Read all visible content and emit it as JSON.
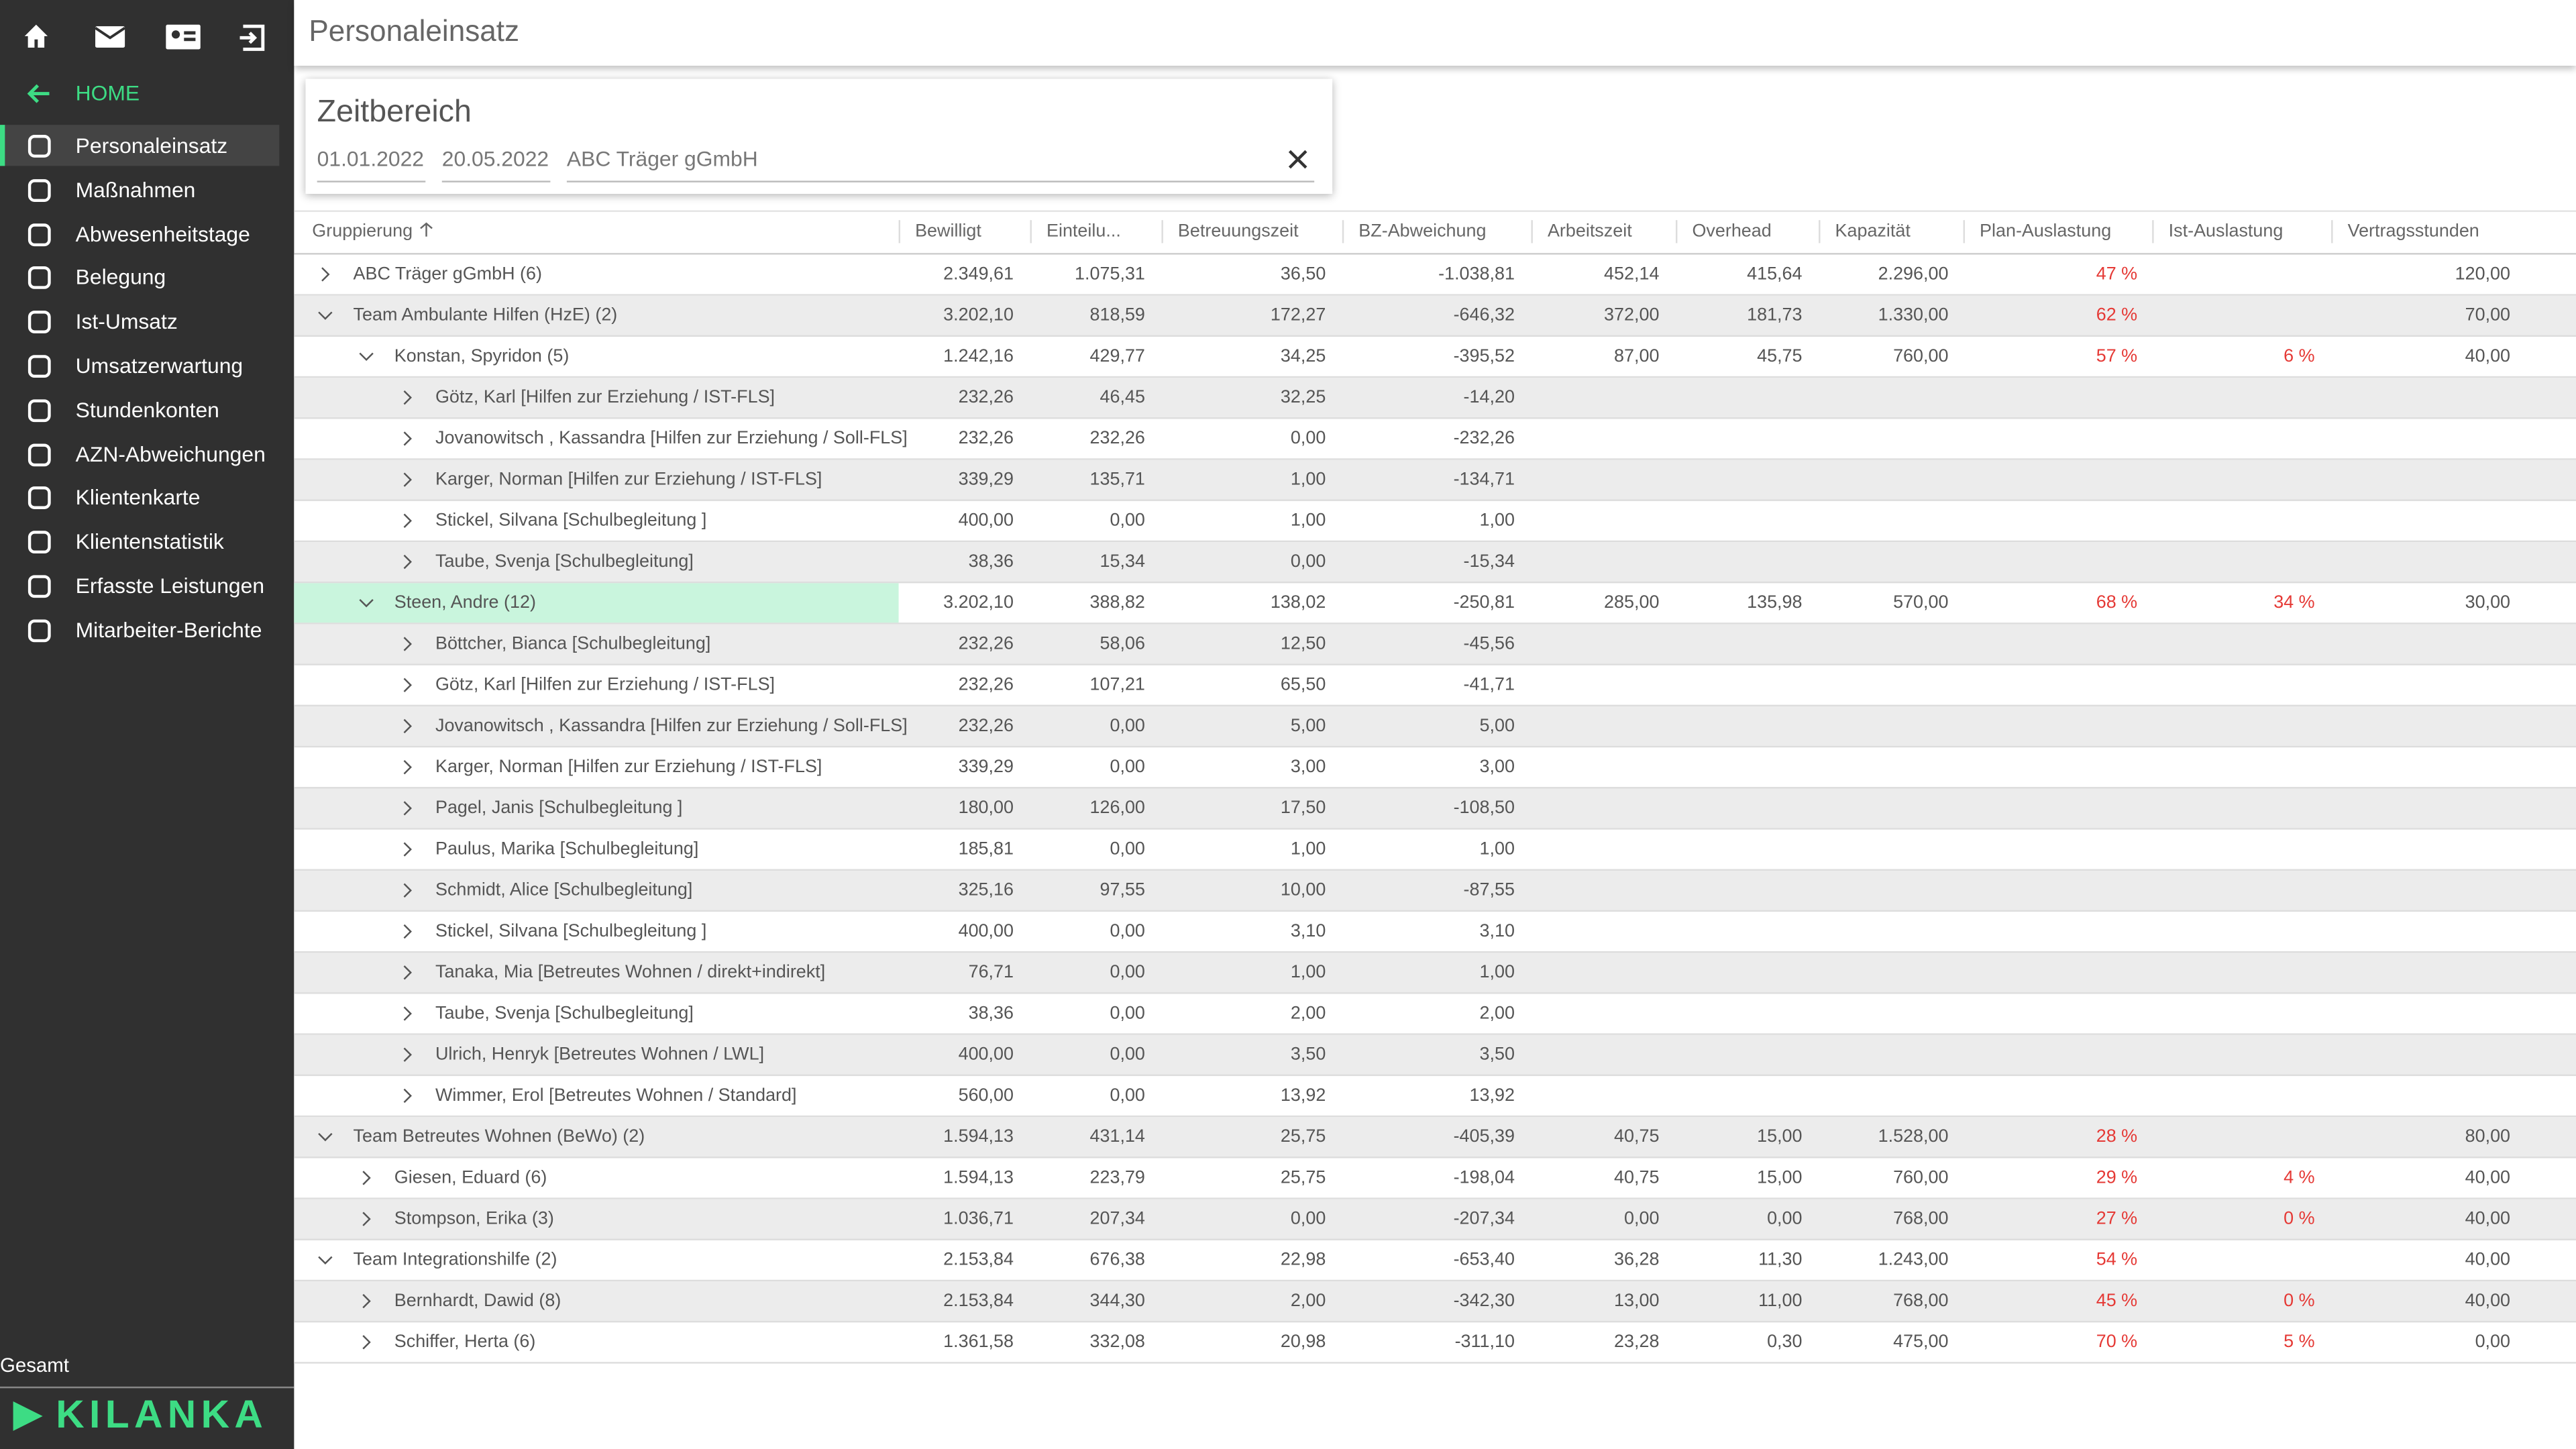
{
  "sidebar": {
    "home": "HOME",
    "items": [
      "Personaleinsatz",
      "Maßnahmen",
      "Abwesenheitstage",
      "Belegung",
      "Ist-Umsatz",
      "Umsatzerwartung",
      "Stundenkonten",
      "AZN-Abweichungen",
      "Klientenkarte",
      "Klientenstatistik",
      "Erfasste Leistungen",
      "Mitarbeiter-Berichte"
    ],
    "footer": "Gesamt",
    "logo": "KILANKA"
  },
  "header": {
    "title": "Personaleinsatz"
  },
  "filter": {
    "title": "Zeitbereich",
    "from": "01.01.2022",
    "to": "20.05.2022",
    "organization": "ABC Träger gGmbH"
  },
  "table": {
    "columns": [
      "Gruppierung",
      "Bewilligt",
      "Einteilu...",
      "Betreuungszeit",
      "BZ-Abweichung",
      "Arbeitszeit",
      "Overhead",
      "Kapazität",
      "Plan-Auslastung",
      "Ist-Auslastung",
      "Vertragsstunden"
    ],
    "rows": [
      {
        "label": "ABC Träger gGmbH (6)",
        "cells": [
          "2.349,61",
          "1.075,31",
          "36,50",
          "-1.038,81",
          "452,14",
          "415,64",
          "2.296,00",
          "47 %",
          null,
          "120,00"
        ]
      },
      {
        "label": "Team Ambulante Hilfen (HzE) (2)",
        "cells": [
          "3.202,10",
          "818,59",
          "172,27",
          "-646,32",
          "372,00",
          "181,73",
          "1.330,00",
          "62 %",
          null,
          "70,00"
        ],
        "children": [
          {
            "label": "Konstan, Spyridon (5)",
            "cells": [
              "1.242,16",
              "429,77",
              "34,25",
              "-395,52",
              "87,00",
              "45,75",
              "760,00",
              "57 %",
              "6 %",
              "40,00"
            ],
            "children": [
              {
                "label": "Götz, Karl [Hilfen zur Erziehung / IST-FLS]",
                "cells": [
                  "232,26",
                  "46,45",
                  "32,25",
                  "-14,20",
                  null,
                  null,
                  null,
                  null,
                  null,
                  null
                ]
              },
              {
                "label": "Jovanowitsch , Kassandra [Hilfen zur Erziehung / Soll-FLS]",
                "cells": [
                  "232,26",
                  "232,26",
                  "0,00",
                  "-232,26",
                  null,
                  null,
                  null,
                  null,
                  null,
                  null
                ]
              },
              {
                "label": "Karger, Norman [Hilfen zur Erziehung / IST-FLS]",
                "cells": [
                  "339,29",
                  "135,71",
                  "1,00",
                  "-134,71",
                  null,
                  null,
                  null,
                  null,
                  null,
                  null
                ]
              },
              {
                "label": "Stickel, Silvana [Schulbegleitung ]",
                "cells": [
                  "400,00",
                  "0,00",
                  "1,00",
                  "1,00",
                  null,
                  null,
                  null,
                  null,
                  null,
                  null
                ]
              },
              {
                "label": "Taube, Svenja [Schulbegleitung]",
                "cells": [
                  "38,36",
                  "15,34",
                  "0,00",
                  "-15,34",
                  null,
                  null,
                  null,
                  null,
                  null,
                  null
                ]
              }
            ]
          },
          {
            "label": "Steen, Andre (12)",
            "selected": true,
            "cells": [
              "3.202,10",
              "388,82",
              "138,02",
              "-250,81",
              "285,00",
              "135,98",
              "570,00",
              "68 %",
              "34 %",
              "30,00"
            ],
            "children": [
              {
                "label": "Böttcher, Bianca [Schulbegleitung]",
                "cells": [
                  "232,26",
                  "58,06",
                  "12,50",
                  "-45,56",
                  null,
                  null,
                  null,
                  null,
                  null,
                  null
                ]
              },
              {
                "label": "Götz, Karl [Hilfen zur Erziehung / IST-FLS]",
                "cells": [
                  "232,26",
                  "107,21",
                  "65,50",
                  "-41,71",
                  null,
                  null,
                  null,
                  null,
                  null,
                  null
                ]
              },
              {
                "label": "Jovanowitsch , Kassandra [Hilfen zur Erziehung / Soll-FLS]",
                "cells": [
                  "232,26",
                  "0,00",
                  "5,00",
                  "5,00",
                  null,
                  null,
                  null,
                  null,
                  null,
                  null
                ]
              },
              {
                "label": "Karger, Norman [Hilfen zur Erziehung / IST-FLS]",
                "cells": [
                  "339,29",
                  "0,00",
                  "3,00",
                  "3,00",
                  null,
                  null,
                  null,
                  null,
                  null,
                  null
                ]
              },
              {
                "label": "Pagel, Janis [Schulbegleitung ]",
                "cells": [
                  "180,00",
                  "126,00",
                  "17,50",
                  "-108,50",
                  null,
                  null,
                  null,
                  null,
                  null,
                  null
                ]
              },
              {
                "label": "Paulus, Marika [Schulbegleitung]",
                "cells": [
                  "185,81",
                  "0,00",
                  "1,00",
                  "1,00",
                  null,
                  null,
                  null,
                  null,
                  null,
                  null
                ]
              },
              {
                "label": "Schmidt, Alice [Schulbegleitung]",
                "cells": [
                  "325,16",
                  "97,55",
                  "10,00",
                  "-87,55",
                  null,
                  null,
                  null,
                  null,
                  null,
                  null
                ]
              },
              {
                "label": "Stickel, Silvana [Schulbegleitung ]",
                "cells": [
                  "400,00",
                  "0,00",
                  "3,10",
                  "3,10",
                  null,
                  null,
                  null,
                  null,
                  null,
                  null
                ]
              },
              {
                "label": "Tanaka, Mia [Betreutes Wohnen / direkt+indirekt]",
                "cells": [
                  "76,71",
                  "0,00",
                  "1,00",
                  "1,00",
                  null,
                  null,
                  null,
                  null,
                  null,
                  null
                ]
              },
              {
                "label": "Taube, Svenja [Schulbegleitung]",
                "cells": [
                  "38,36",
                  "0,00",
                  "2,00",
                  "2,00",
                  null,
                  null,
                  null,
                  null,
                  null,
                  null
                ]
              },
              {
                "label": "Ulrich, Henryk [Betreutes Wohnen / LWL]",
                "cells": [
                  "400,00",
                  "0,00",
                  "3,50",
                  "3,50",
                  null,
                  null,
                  null,
                  null,
                  null,
                  null
                ]
              },
              {
                "label": "Wimmer, Erol [Betreutes Wohnen / Standard]",
                "cells": [
                  "560,00",
                  "0,00",
                  "13,92",
                  "13,92",
                  null,
                  null,
                  null,
                  null,
                  null,
                  null
                ]
              }
            ]
          }
        ]
      },
      {
        "label": "Team Betreutes Wohnen (BeWo) (2)",
        "cells": [
          "1.594,13",
          "431,14",
          "25,75",
          "-405,39",
          "40,75",
          "15,00",
          "1.528,00",
          "28 %",
          null,
          "80,00"
        ],
        "children": [
          {
            "label": "Giesen, Eduard (6)",
            "cells": [
              "1.594,13",
              "223,79",
              "25,75",
              "-198,04",
              "40,75",
              "15,00",
              "760,00",
              "29 %",
              "4 %",
              "40,00"
            ]
          },
          {
            "label": "Stompson, Erika (3)",
            "cells": [
              "1.036,71",
              "207,34",
              "0,00",
              "-207,34",
              "0,00",
              "0,00",
              "768,00",
              "27 %",
              "0 %",
              "40,00"
            ]
          }
        ]
      },
      {
        "label": "Team Integrationshilfe (2)",
        "cells": [
          "2.153,84",
          "676,38",
          "22,98",
          "-653,40",
          "36,28",
          "11,30",
          "1.243,00",
          "54 %",
          null,
          "40,00"
        ],
        "children": [
          {
            "label": "Bernhardt, Dawid (8)",
            "cells": [
              "2.153,84",
              "344,30",
              "2,00",
              "-342,30",
              "13,00",
              "11,00",
              "768,00",
              "45 %",
              "0 %",
              "40,00"
            ]
          },
          {
            "label": "Schiffer, Herta (6)",
            "cells": [
              "1.361,58",
              "332,08",
              "20,98",
              "-311,10",
              "23,28",
              "0,30",
              "475,00",
              "70 %",
              "5 %",
              "0,00"
            ]
          }
        ]
      }
    ]
  }
}
